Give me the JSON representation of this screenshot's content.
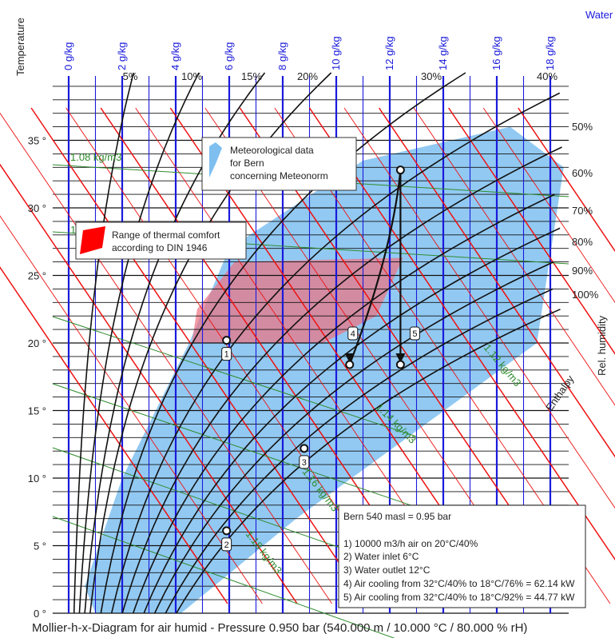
{
  "chart_data": {
    "type": "scatter",
    "title": "Mollier-h-x-Diagram for air humid - Pressure 0.950 bar (540.000 m / 10.000 °C / 80.000 % rH)",
    "ylabel": "Temperature",
    "xlabel": "Water",
    "rh_axis_label": "Rel. humidity",
    "enthalpy_label": "Enthalpy",
    "ylim": [
      0,
      40
    ],
    "xlim": [
      0,
      18.5
    ],
    "y_ticks": [
      "0 °",
      "5 °",
      "10 °",
      "15 °",
      "20 °",
      "25 °",
      "30 °",
      "35 °"
    ],
    "x_ticks": [
      "0 g/kg",
      "2 g/kg",
      "4 g/kg",
      "6 g/kg",
      "8 g/kg",
      "10 g/kg",
      "12 g/kg",
      "14 g/kg",
      "16 g/kg",
      "18 g/kg"
    ],
    "rh_top_labels": [
      "5%",
      "10%",
      "15%",
      "20%",
      "30%",
      "40%"
    ],
    "rh_right_labels": [
      "50%",
      "60%",
      "70%",
      "80%",
      "90%",
      "100%"
    ],
    "density_labels": [
      "1.08 kg/m3",
      "1.1",
      "1.12 kg/m3",
      "1.14 kg/m3",
      "1.16 kg/m3",
      "1.18 kg/m3"
    ],
    "legend": {
      "meteo": [
        "Meteorological data",
        "for Bern",
        "concerning Meteonorm"
      ],
      "comfort": [
        "Range of thermal comfort",
        "according to DIN 1946"
      ]
    },
    "comfort_zone": [
      [
        4.6,
        20.0
      ],
      [
        4.8,
        22.5
      ],
      [
        6.2,
        26.0
      ],
      [
        12.5,
        26.3
      ],
      [
        11.5,
        22.0
      ],
      [
        9.5,
        20.0
      ]
    ],
    "meteo_region": [
      [
        1.0,
        0.0
      ],
      [
        4.2,
        0.0
      ],
      [
        8.5,
        7.0
      ],
      [
        13.0,
        13.5
      ],
      [
        17.5,
        20.0
      ],
      [
        18.5,
        33.0
      ],
      [
        16.5,
        36.0
      ],
      [
        11.0,
        33.5
      ],
      [
        6.0,
        27.0
      ],
      [
        4.5,
        20.0
      ],
      [
        2.0,
        10.0
      ],
      [
        0.6,
        2.0
      ]
    ],
    "points": [
      {
        "label": "1",
        "x": 5.9,
        "y": 20.2
      },
      {
        "label": "2",
        "x": 5.9,
        "y": 6.1
      },
      {
        "label": "3",
        "x": 8.8,
        "y": 12.2
      },
      {
        "label": "4",
        "x": 10.5,
        "y": 18.4
      },
      {
        "label": "5",
        "x": 12.4,
        "y": 18.4
      },
      {
        "label": "",
        "x": 12.4,
        "y": 32.8
      }
    ],
    "processes": [
      {
        "from": [
          12.4,
          32.8
        ],
        "to": [
          10.5,
          18.4
        ],
        "label": "4"
      },
      {
        "from": [
          12.4,
          32.8
        ],
        "to": [
          12.4,
          18.4
        ],
        "label": "5"
      }
    ],
    "info_box": [
      "Bern 540 masl = 0.95 bar",
      "1) 10000 m3/h air on 20°C/40%",
      "2) Water inlet 6°C",
      "3) Water outlet 12°C",
      "4) Air cooling from 32°C/40% to 18°C/76% = 62.14 kW",
      "5) Air cooling from 32°C/40% to 18°C/92% = 44.77 kW"
    ],
    "colors": {
      "water_lines": "#1a1adb",
      "enthalpy_lines": "#e11",
      "density_lines": "#2e8b2e",
      "meteo": "#7fbff0",
      "comfort": "#f07080"
    }
  }
}
